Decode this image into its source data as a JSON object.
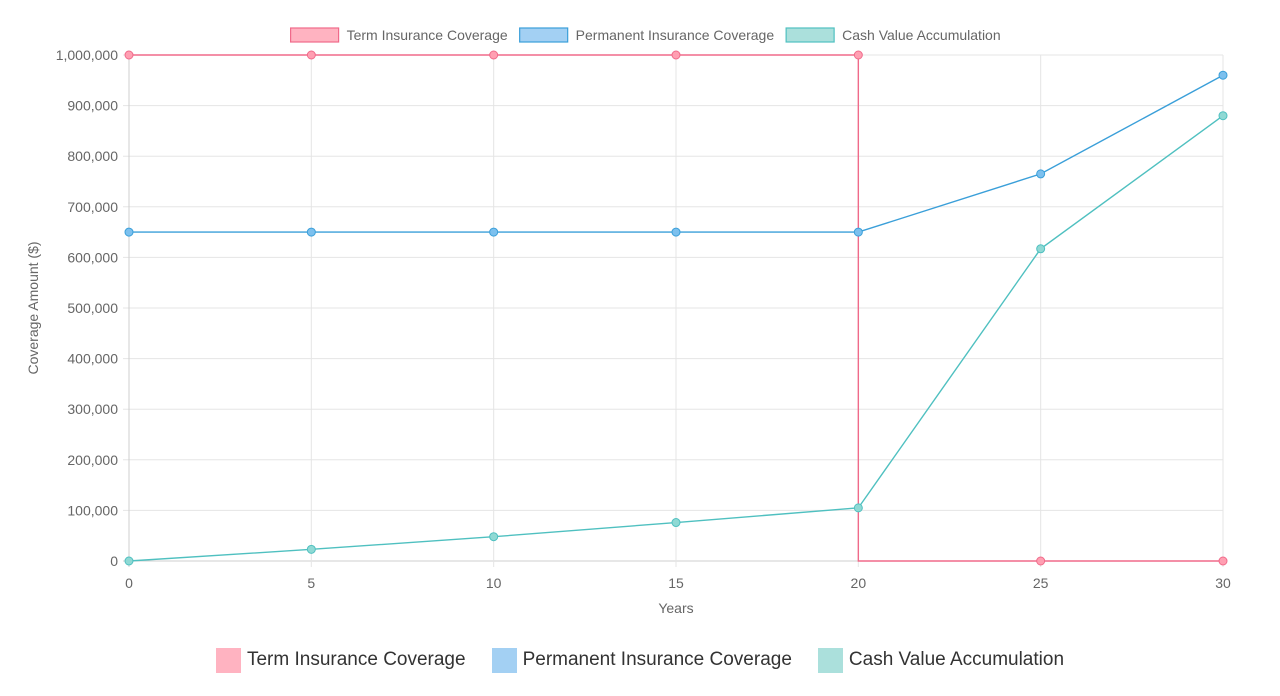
{
  "chart_data": {
    "type": "line",
    "title": "",
    "xlabel": "Years",
    "ylabel": "Coverage Amount ($)",
    "x": [
      0,
      5,
      10,
      15,
      20,
      25,
      30
    ],
    "x_ticks": [
      "0",
      "5",
      "10",
      "15",
      "20",
      "25",
      "30"
    ],
    "xlim": [
      0,
      30
    ],
    "ylim": [
      0,
      1000000
    ],
    "y_ticks": [
      "0",
      "100,000",
      "200,000",
      "300,000",
      "400,000",
      "500,000",
      "600,000",
      "700,000",
      "800,000",
      "900,000",
      "1,000,000"
    ],
    "grid": true,
    "legend_position": "top",
    "series": [
      {
        "name": "Term Insurance Coverage",
        "values": [
          1000000,
          1000000,
          1000000,
          1000000,
          1000000,
          0,
          0
        ],
        "stepped": "before",
        "line_color": "#f06a8a",
        "point_color": "#ff9fb2",
        "fill_color": "#ffb3c1"
      },
      {
        "name": "Permanent Insurance Coverage",
        "values": [
          650000,
          650000,
          650000,
          650000,
          650000,
          765000,
          960000
        ],
        "line_color": "#3a9fd9",
        "point_color": "#7cc0ee",
        "fill_color": "#a3d0f3"
      },
      {
        "name": "Cash Value Accumulation",
        "values": [
          0,
          23000,
          48000,
          76000,
          105000,
          617000,
          880000
        ],
        "line_color": "#4fc0c0",
        "point_color": "#8fd9d4",
        "fill_color": "#abe0dc"
      }
    ]
  },
  "bottom_legend": {
    "items": [
      {
        "label": "Term Insurance Coverage",
        "color": "#ffb3c1"
      },
      {
        "label": "Permanent Insurance Coverage",
        "color": "#a3d0f3"
      },
      {
        "label": "Cash Value Accumulation",
        "color": "#abe0dc"
      }
    ]
  }
}
